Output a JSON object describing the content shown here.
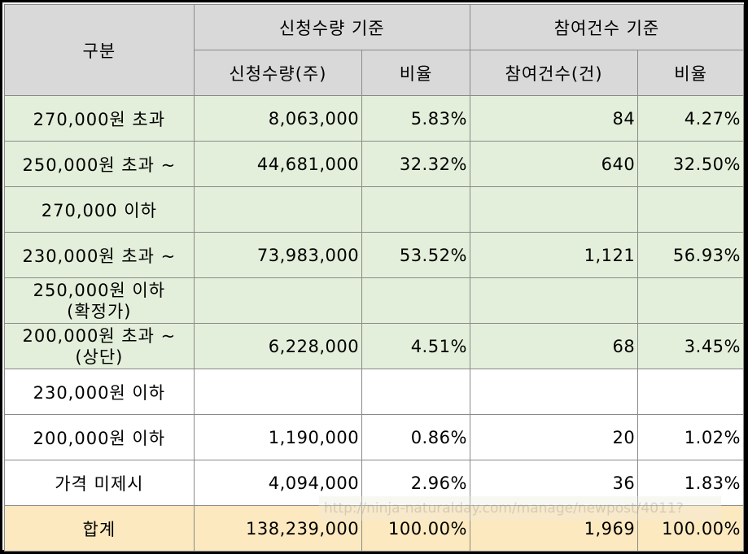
{
  "header": {
    "category": "구분",
    "group_shares": "신청수량 기준",
    "group_count": "참여건수 기준",
    "col_shares": "신청수량(주)",
    "col_shares_ratio": "비율",
    "col_count": "참여건수(건)",
    "col_count_ratio": "비율"
  },
  "rows": [
    {
      "label": "270,000원 초과",
      "shares": "8,063,000",
      "shares_ratio": "5.83%",
      "count": "84",
      "count_ratio": "4.27%"
    },
    {
      "label": "250,000원 초과 ~",
      "shares": "44,681,000",
      "shares_ratio": "32.32%",
      "count": "640",
      "count_ratio": "32.50%"
    },
    {
      "label": "270,000 이하",
      "shares": "",
      "shares_ratio": "",
      "count": "",
      "count_ratio": ""
    },
    {
      "label": "230,000원 초과 ~",
      "shares": "73,983,000",
      "shares_ratio": "53.52%",
      "count": "1,121",
      "count_ratio": "56.93%"
    },
    {
      "label_line1": "250,000원 이하",
      "label_line2": "(확정가)",
      "shares": "",
      "shares_ratio": "",
      "count": "",
      "count_ratio": ""
    },
    {
      "label_line1": "200,000원 초과 ~",
      "label_line2": "(상단)",
      "shares": "6,228,000",
      "shares_ratio": "4.51%",
      "count": "68",
      "count_ratio": "3.45%"
    },
    {
      "label": "230,000원 이하",
      "shares": "",
      "shares_ratio": "",
      "count": "",
      "count_ratio": ""
    },
    {
      "label": "200,000원 이하",
      "shares": "1,190,000",
      "shares_ratio": "0.86%",
      "count": "20",
      "count_ratio": "1.02%"
    },
    {
      "label": "가격 미제시",
      "shares": "4,094,000",
      "shares_ratio": "2.96%",
      "count": "36",
      "count_ratio": "1.83%"
    }
  ],
  "total": {
    "label": "합계",
    "shares": "138,239,000",
    "shares_ratio": "100.00%",
    "count": "1,969",
    "count_ratio": "100.00%"
  },
  "watermark": "http://ninja-naturalday.com/manage/newpost/4011?"
}
